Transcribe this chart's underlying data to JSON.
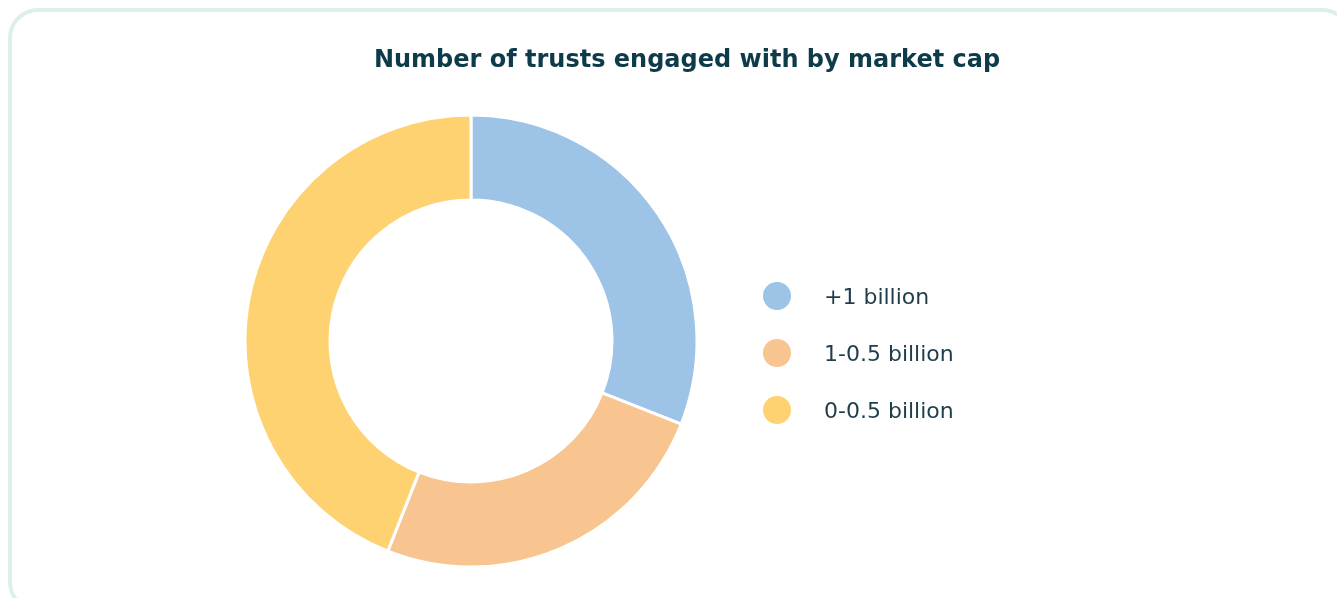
{
  "chart_data": {
    "type": "donut",
    "title": "Number of trusts engaged with by market cap",
    "categories": [
      "+1 billion",
      "1-0.5 billion",
      "0-0.5 billion"
    ],
    "values": [
      31,
      25,
      44
    ],
    "colors": [
      "#9dc3e6",
      "#f8c48f",
      "#ffd271"
    ],
    "legend": "right"
  }
}
